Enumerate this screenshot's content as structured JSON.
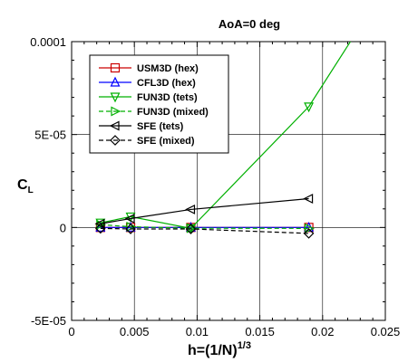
{
  "chart_data": {
    "type": "line",
    "title": "AoA=0 deg",
    "xlabel": {
      "main": "h=(1/N)",
      "sup": "1/3"
    },
    "ylabel": {
      "main": "C",
      "sub": "L"
    },
    "xlim": [
      0,
      0.025
    ],
    "ylim": [
      -5e-05,
      0.0001
    ],
    "xticks": [
      0,
      0.005,
      0.01,
      0.015,
      0.02,
      0.025
    ],
    "xtick_labels": [
      "0",
      "0.005",
      "0.01",
      "0.015",
      "0.02",
      "0.025"
    ],
    "yticks": [
      -5e-05,
      0,
      5e-05,
      0.0001
    ],
    "ytick_labels": [
      "-5E-05",
      "0",
      "5E-05",
      "0.0001"
    ],
    "grid": true,
    "legend_position": "top-left",
    "series": [
      {
        "name": "USM3D (hex)",
        "color": "#cc0000",
        "dash": "solid",
        "marker": "square",
        "x": [
          0.0023,
          0.0047,
          0.0095,
          0.0189
        ],
        "y": [
          0.0,
          0.0,
          0.0,
          0.0
        ]
      },
      {
        "name": "CFL3D (hex)",
        "color": "#0000ff",
        "dash": "solid",
        "marker": "triangle-up",
        "x": [
          0.0023,
          0.0047,
          0.0095,
          0.0189
        ],
        "y": [
          0.0,
          0.0,
          0.0,
          0.0
        ]
      },
      {
        "name": "FUN3D (tets)",
        "color": "#00b000",
        "dash": "solid",
        "marker": "triangle-down",
        "x": [
          0.0023,
          0.0047,
          0.0095,
          0.0189,
          0.0225
        ],
        "y": [
          2.5e-06,
          5.8e-06,
          -5e-07,
          6.5e-05,
          0.000103
        ]
      },
      {
        "name": "FUN3D (mixed)",
        "color": "#00b000",
        "dash": "dashed",
        "marker": "triangle-right",
        "x": [
          0.0023,
          0.0047,
          0.0095,
          0.0189
        ],
        "y": [
          1.5e-06,
          4e-07,
          -4e-07,
          -5e-07
        ]
      },
      {
        "name": "SFE (tets)",
        "color": "#000000",
        "dash": "solid",
        "marker": "triangle-left",
        "x": [
          0.0023,
          0.0047,
          0.0095,
          0.0189
        ],
        "y": [
          2e-06,
          4.8e-06,
          9.7e-06,
          1.55e-05
        ]
      },
      {
        "name": "SFE (mixed)",
        "color": "#000000",
        "dash": "dashed",
        "marker": "diamond",
        "x": [
          0.0023,
          0.0047,
          0.0095,
          0.0189
        ],
        "y": [
          -5e-07,
          -8e-07,
          -8e-07,
          -3.2e-06
        ]
      }
    ]
  }
}
